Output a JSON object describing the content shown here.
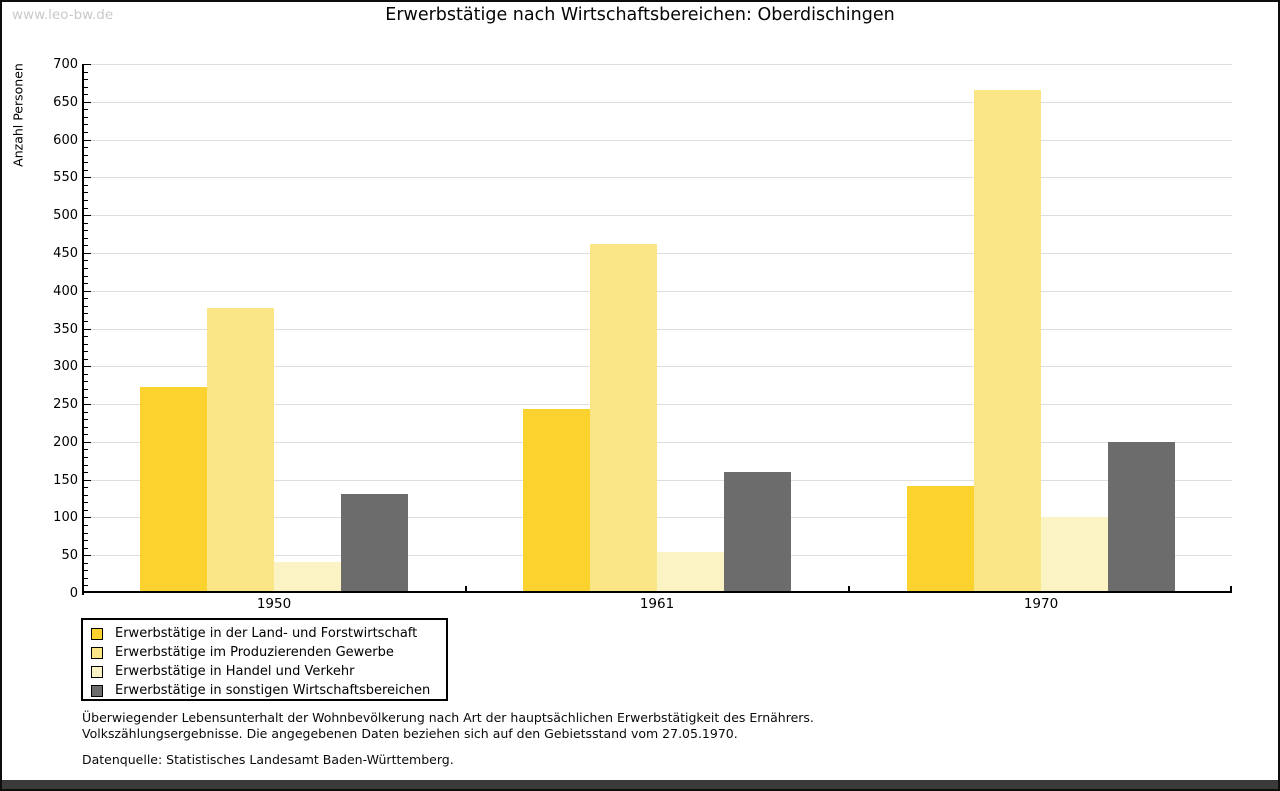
{
  "site_watermark": "www.leo-bw.de",
  "title": "Erwerbstätige nach Wirtschaftsbereichen: Oberdischingen",
  "chart_data": {
    "type": "bar",
    "title": "Erwerbstätige nach Wirtschaftsbereichen: Oberdischingen",
    "xlabel": "",
    "ylabel": "Anzahl Personen",
    "ylim": [
      0,
      700
    ],
    "ytick_step": 50,
    "yminor_step": 10,
    "grid": true,
    "legend_position": "bottom-left",
    "categories": [
      "1950",
      "1961",
      "1970"
    ],
    "series": [
      {
        "key": "land-forstwirtschaft",
        "name": "Erwerbstätige in der Land- und Forstwirtschaft",
        "color": "#FCD22F",
        "values": [
          272,
          243,
          142
        ]
      },
      {
        "key": "produzierendes-gewerbe",
        "name": "Erwerbstätige im Produzierenden Gewerbe",
        "color": "#FBE687",
        "values": [
          377,
          462,
          665
        ]
      },
      {
        "key": "handel-verkehr",
        "name": "Erwerbstätige in Handel und Verkehr",
        "color": "#FCF3C4",
        "values": [
          41,
          54,
          101
        ]
      },
      {
        "key": "sonstige-wirtschaftsbereiche",
        "name": "Erwerbstätige in sonstigen Wirtschaftsbereichen",
        "color": "#6C6C6C",
        "values": [
          131,
          160,
          200
        ]
      }
    ]
  },
  "footer": {
    "line1": "Überwiegender Lebensunterhalt der Wohnbevölkerung nach Art der hauptsächlichen Erwerbstätigkeit des Ernährers.",
    "line2": "Volkszählungsergebnisse. Die angegebenen Daten beziehen sich auf den Gebietsstand vom 27.05.1970.",
    "source": "Datenquelle: Statistisches Landesamt Baden-Württemberg."
  },
  "colors": {
    "grid": "#DEDEDE",
    "axis": "#000000",
    "watermark": "#C9C9C9",
    "bottom_bar": "#3A3A3A"
  }
}
